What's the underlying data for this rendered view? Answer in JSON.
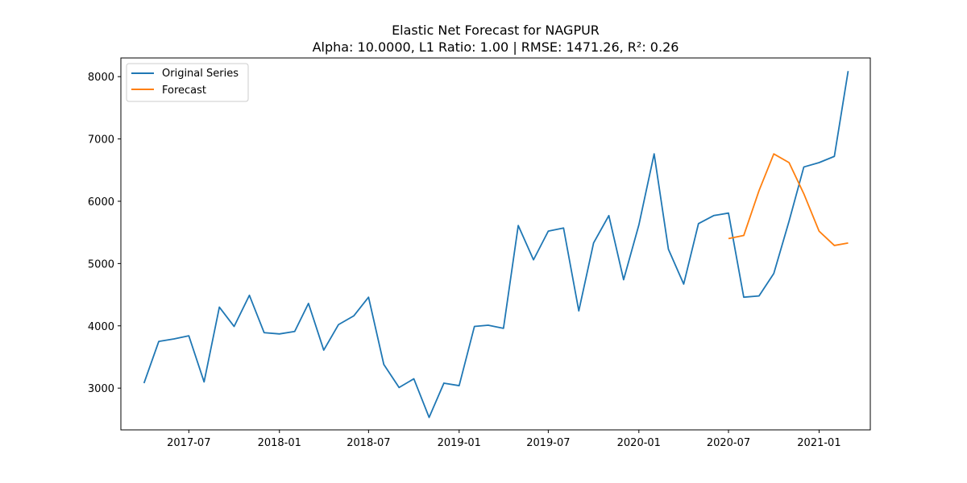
{
  "chart_data": {
    "type": "line",
    "title": "Elastic Net Forecast for NAGPUR",
    "subtitle": "Alpha: 10.0000, L1 Ratio: 1.00 | RMSE: 1471.26, R²: 0.26",
    "xlabel": "",
    "ylabel": "",
    "xlim": [
      "2017-02-13",
      "2021-04-15"
    ],
    "ylim": [
      2330,
      8300
    ],
    "x_ticks": [
      "2017-07",
      "2018-01",
      "2018-07",
      "2019-01",
      "2019-07",
      "2020-01",
      "2020-07",
      "2021-01"
    ],
    "y_ticks": [
      3000,
      4000,
      5000,
      6000,
      7000,
      8000
    ],
    "grid": false,
    "legend_position": "top-left",
    "series": [
      {
        "name": "Original Series",
        "color": "#1f77b4",
        "x": [
          "2017-04-01",
          "2017-05-01",
          "2017-06-01",
          "2017-07-01",
          "2017-08-01",
          "2017-09-01",
          "2017-10-01",
          "2017-11-01",
          "2017-12-01",
          "2018-01-01",
          "2018-02-01",
          "2018-03-01",
          "2018-04-01",
          "2018-05-01",
          "2018-06-01",
          "2018-07-01",
          "2018-08-01",
          "2018-09-01",
          "2018-10-01",
          "2018-11-01",
          "2018-12-01",
          "2019-01-01",
          "2019-02-01",
          "2019-03-01",
          "2019-04-01",
          "2019-05-01",
          "2019-06-01",
          "2019-07-01",
          "2019-08-01",
          "2019-09-01",
          "2019-10-01",
          "2019-11-01",
          "2019-12-01",
          "2020-01-01",
          "2020-02-01",
          "2020-03-01",
          "2020-04-01",
          "2020-05-01",
          "2020-06-01",
          "2020-07-01",
          "2020-08-01",
          "2020-09-01",
          "2020-10-01",
          "2020-11-01",
          "2020-12-01",
          "2021-01-01",
          "2021-02-01",
          "2021-03-01"
        ],
        "values": [
          3080,
          3750,
          3790,
          3840,
          3100,
          4300,
          3990,
          4490,
          3890,
          3870,
          3910,
          4360,
          3610,
          4020,
          4160,
          4460,
          3380,
          3010,
          3150,
          2530,
          3080,
          3040,
          3990,
          4010,
          3960,
          5610,
          5060,
          5520,
          5570,
          4240,
          5330,
          5770,
          4740,
          5620,
          6760,
          5230,
          4670,
          5640,
          5770,
          5810,
          4460,
          4480,
          4840,
          5680,
          6550,
          6620,
          6720,
          8090
        ]
      },
      {
        "name": "Forecast",
        "color": "#ff7f0e",
        "x": [
          "2020-07-01",
          "2020-08-01",
          "2020-09-01",
          "2020-10-01",
          "2020-11-01",
          "2020-12-01",
          "2021-01-01",
          "2021-02-01",
          "2021-03-01"
        ],
        "values": [
          5400,
          5450,
          6170,
          6760,
          6620,
          6120,
          5520,
          5290,
          5330
        ]
      }
    ]
  }
}
